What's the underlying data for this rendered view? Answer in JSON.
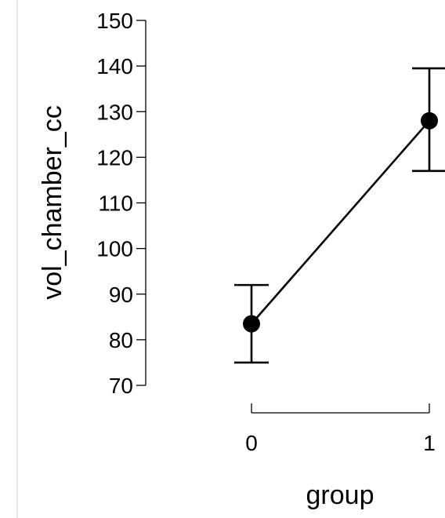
{
  "chart_data": {
    "type": "line",
    "title": "",
    "xlabel": "group",
    "ylabel": "vol_chamber_cc",
    "categories": [
      "0",
      "1"
    ],
    "series": [
      {
        "values": [
          83.5,
          128
        ],
        "error_low": [
          75,
          117
        ],
        "error_high": [
          92,
          139.5
        ],
        "marker": "circle",
        "color": "#000000"
      }
    ],
    "yticks": [
      70,
      80,
      90,
      100,
      110,
      120,
      130,
      140,
      150
    ],
    "ylim": [
      70,
      150
    ],
    "grid": false,
    "legend": "none"
  }
}
